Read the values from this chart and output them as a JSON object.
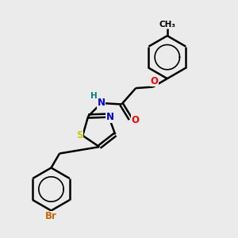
{
  "bg_color": "#ebebeb",
  "bond_color": "#000000",
  "bond_width": 1.8,
  "atom_colors": {
    "N": "#0000dd",
    "O": "#ff0000",
    "S": "#cccc00",
    "Br": "#cc6600",
    "H": "#008080",
    "C": "#000000"
  },
  "font_size": 8
}
